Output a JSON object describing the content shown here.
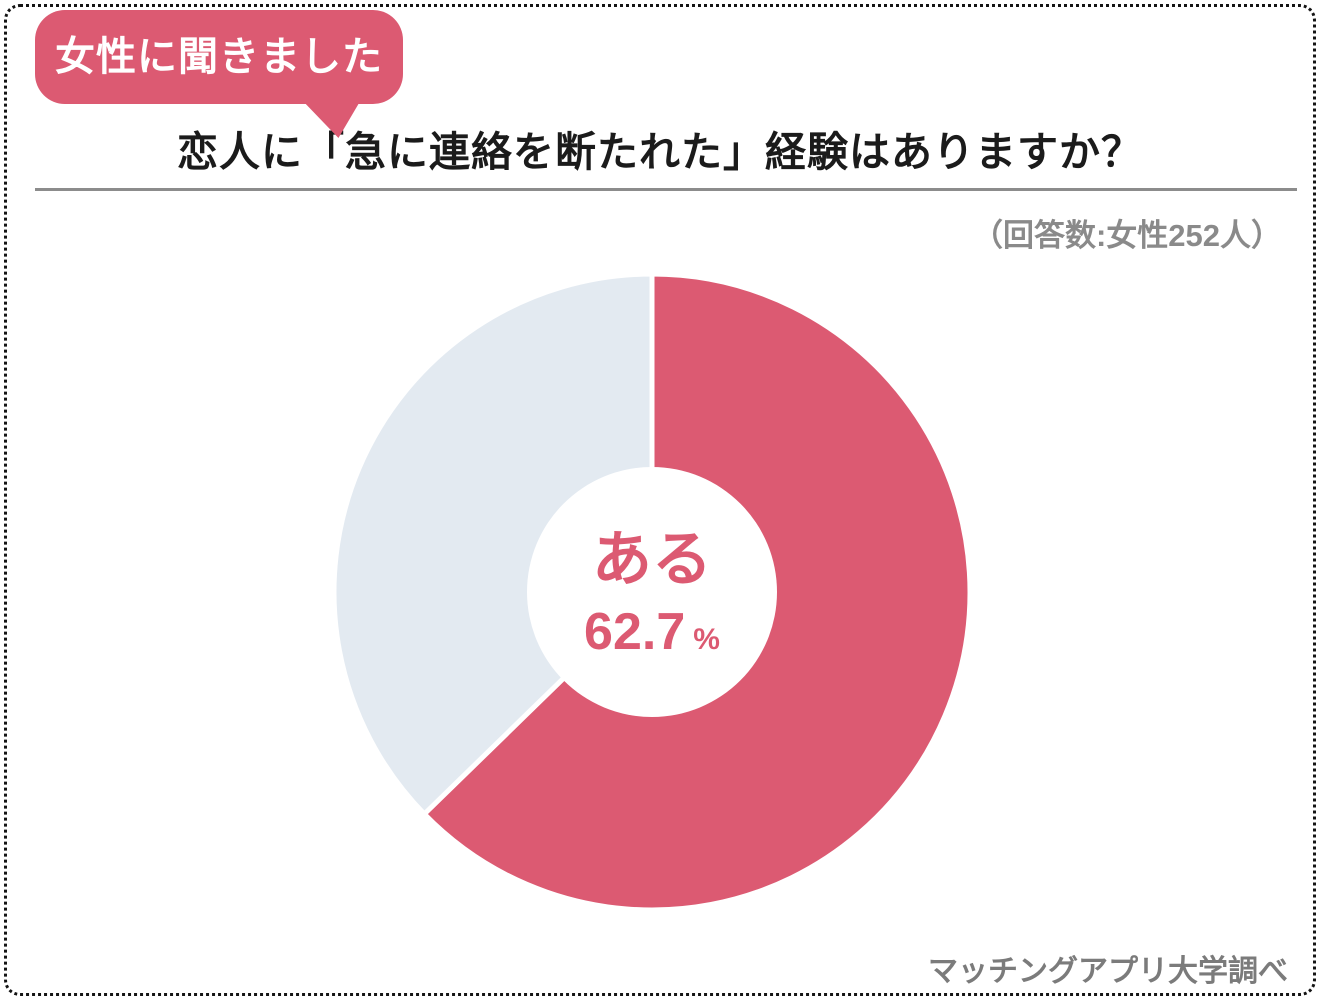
{
  "page": {
    "background_color": "#ffffff",
    "border_color": "#141414"
  },
  "badge": {
    "label": "女性に聞きました",
    "bg_color": "#dc5a72",
    "text_color": "#ffffff"
  },
  "header": {
    "title": "恋人に「急に連絡を断たれた」経験はありますか？",
    "respondents_note": "（回答数:女性252人）"
  },
  "footer": {
    "source": "マッチングアプリ大学調べ"
  },
  "chart_data": {
    "type": "pie",
    "donut": true,
    "title": "恋人に「急に連絡を断たれた」経験はありますか？",
    "slices": [
      {
        "label": "ある",
        "value": 62.7,
        "color": "#dc5a72"
      },
      {
        "label": "",
        "value": 37.3,
        "color": "#e3eaf1"
      }
    ],
    "start_angle_deg": 0,
    "direction": "clockwise",
    "hole_ratio": 0.393,
    "separator": {
      "color": "#ffffff",
      "width": 5
    },
    "legend": "none",
    "center_label": {
      "text": "ある",
      "value": "62.7",
      "unit": "%",
      "color": "#dc5a72"
    }
  }
}
